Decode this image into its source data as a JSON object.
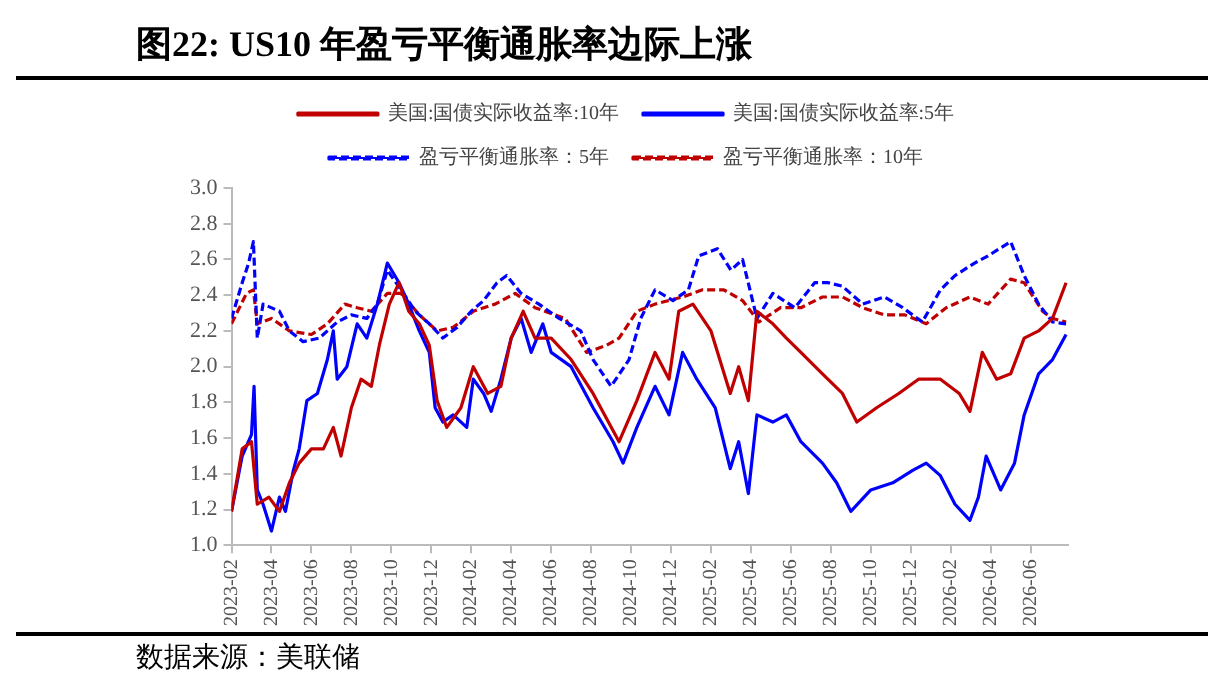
{
  "chart_data": {
    "type": "line",
    "title": "图22:  US10 年盈亏平衡通胀率边际上涨",
    "annotations": [
      "数据来源：美联储"
    ],
    "xlim": [
      "2023-02",
      "2026-07-28"
    ],
    "xticks": [
      "2023-02",
      "2023-04",
      "2023-06",
      "2023-08",
      "2023-10",
      "2023-12",
      "2024-02",
      "2024-04",
      "2024-06",
      "2024-08",
      "2024-10",
      "2024-12",
      "2025-02",
      "2025-04",
      "2025-06",
      "2025-08",
      "2025-10",
      "2025-12",
      "2026-02",
      "2026-04",
      "2026-06"
    ],
    "ylim": [
      1.0,
      3.0
    ],
    "yticks": [
      {
        "value": 1,
        "label": "1.0"
      },
      1.2,
      1.4,
      1.6,
      1.8,
      {
        "value": 2,
        "label": "2.0"
      },
      2.2,
      2.4,
      2.6,
      2.8,
      {
        "value": 3,
        "label": "3.0"
      }
    ],
    "grid": false,
    "legend": "top",
    "marker": "none",
    "series": [
      {
        "name": "美国:国债实际收益率:10年",
        "color": "#c00000",
        "line_style": "solid",
        "x": [
          "2023-02-01",
          "2023-02-16",
          "2023-03-01",
          "2023-03-10",
          "2023-03-28",
          "2023-04-13",
          "2023-04-28",
          "2023-05-13",
          "2023-06-01",
          "2023-06-19",
          "2023-07-04",
          "2023-07-16",
          "2023-08-01",
          "2023-08-16",
          "2023-09-01",
          "2023-09-13",
          "2023-09-28",
          "2023-10-13",
          "2023-10-28",
          "2023-11-13",
          "2023-11-28",
          "2023-12-10",
          "2023-12-25",
          "2024-01-16",
          "2024-02-04",
          "2024-02-25",
          "2024-03-16",
          "2024-04-01",
          "2024-04-19",
          "2024-05-07",
          "2024-06-01",
          "2024-07-01",
          "2024-08-04",
          "2024-09-13",
          "2024-10-10",
          "2024-11-07",
          "2024-11-28",
          "2024-12-13",
          "2025-01-04",
          "2025-02-01",
          "2025-02-28",
          "2025-03-13",
          "2025-03-28",
          "2025-04-10",
          "2025-05-04",
          "2025-05-25",
          "2025-06-16",
          "2025-07-19",
          "2025-08-19",
          "2025-09-10",
          "2025-10-10",
          "2025-11-13",
          "2025-12-13",
          "2026-01-16",
          "2026-02-13",
          "2026-02-28",
          "2026-03-19",
          "2026-04-10",
          "2026-05-01",
          "2026-05-22",
          "2026-06-13",
          "2026-07-04",
          "2026-07-25"
        ],
        "values": [
          1.19,
          1.54,
          1.58,
          1.23,
          1.27,
          1.19,
          1.35,
          1.46,
          1.54,
          1.54,
          1.66,
          1.5,
          1.77,
          1.93,
          1.89,
          2.12,
          2.35,
          2.47,
          2.31,
          2.24,
          2.12,
          1.81,
          1.66,
          1.77,
          2.0,
          1.85,
          1.89,
          2.16,
          2.31,
          2.16,
          2.16,
          2.04,
          1.85,
          1.58,
          1.81,
          2.08,
          1.93,
          2.31,
          2.35,
          2.2,
          1.85,
          2.0,
          1.81,
          2.31,
          2.24,
          2.16,
          2.08,
          1.96,
          1.85,
          1.69,
          1.77,
          1.85,
          1.93,
          1.93,
          1.85,
          1.75,
          2.08,
          1.93,
          1.96,
          2.16,
          2.2,
          2.27,
          2.47
        ]
      },
      {
        "name": "美国:国债实际收益率:5年",
        "color": "#0000ff",
        "line_style": "solid",
        "x": [
          "2023-02-01",
          "2023-02-16",
          "2023-03-01",
          "2023-03-05",
          "2023-03-10",
          "2023-03-19",
          "2023-04-01",
          "2023-04-13",
          "2023-04-22",
          "2023-05-04",
          "2023-05-13",
          "2023-05-25",
          "2023-06-10",
          "2023-06-25",
          "2023-07-04",
          "2023-07-10",
          "2023-07-25",
          "2023-08-10",
          "2023-08-25",
          "2023-09-10",
          "2023-09-25",
          "2023-10-13",
          "2023-10-28",
          "2023-11-13",
          "2023-11-28",
          "2023-12-07",
          "2023-12-19",
          "2024-01-04",
          "2024-01-25",
          "2024-02-04",
          "2024-02-19",
          "2024-03-01",
          "2024-03-16",
          "2024-04-01",
          "2024-04-16",
          "2024-05-01",
          "2024-05-19",
          "2024-06-01",
          "2024-07-01",
          "2024-08-04",
          "2024-09-04",
          "2024-09-19",
          "2024-10-10",
          "2024-11-07",
          "2024-11-28",
          "2024-12-19",
          "2025-01-10",
          "2025-02-07",
          "2025-02-28",
          "2025-03-13",
          "2025-03-28",
          "2025-04-10",
          "2025-05-04",
          "2025-05-25",
          "2025-06-16",
          "2025-07-19",
          "2025-08-10",
          "2025-09-01",
          "2025-10-01",
          "2025-11-04",
          "2025-12-04",
          "2025-12-25",
          "2026-01-16",
          "2026-02-07",
          "2026-02-28",
          "2026-03-13",
          "2026-03-25",
          "2026-04-16",
          "2026-05-07",
          "2026-05-22",
          "2026-06-13",
          "2026-07-04",
          "2026-07-25"
        ],
        "values": [
          1.19,
          1.5,
          1.62,
          1.89,
          1.31,
          1.23,
          1.08,
          1.27,
          1.19,
          1.42,
          1.54,
          1.81,
          1.85,
          2.04,
          2.2,
          1.93,
          2.0,
          2.24,
          2.16,
          2.35,
          2.58,
          2.47,
          2.35,
          2.2,
          2.08,
          1.77,
          1.69,
          1.73,
          1.66,
          1.93,
          1.85,
          1.75,
          1.93,
          2.16,
          2.27,
          2.08,
          2.24,
          2.08,
          2.0,
          1.77,
          1.58,
          1.46,
          1.66,
          1.89,
          1.73,
          2.08,
          1.93,
          1.77,
          1.43,
          1.58,
          1.29,
          1.73,
          1.69,
          1.73,
          1.58,
          1.46,
          1.35,
          1.19,
          1.31,
          1.35,
          1.42,
          1.46,
          1.39,
          1.23,
          1.14,
          1.27,
          1.5,
          1.31,
          1.46,
          1.73,
          1.96,
          2.04,
          2.18
        ]
      },
      {
        "name": "盈亏平衡通胀率：5年",
        "color": "#0000ff",
        "line_style": "dashed",
        "x": [
          "2023-02-01",
          "2023-02-16",
          "2023-02-25",
          "2023-03-04",
          "2023-03-10",
          "2023-03-19",
          "2023-04-13",
          "2023-04-28",
          "2023-05-19",
          "2023-06-13",
          "2023-07-10",
          "2023-08-01",
          "2023-08-25",
          "2023-09-10",
          "2023-09-25",
          "2023-10-16",
          "2023-11-07",
          "2023-11-28",
          "2023-12-19",
          "2024-01-10",
          "2024-02-01",
          "2024-02-19",
          "2024-03-10",
          "2024-03-25",
          "2024-04-16",
          "2024-05-13",
          "2024-06-13",
          "2024-07-16",
          "2024-08-04",
          "2024-09-01",
          "2024-09-28",
          "2024-10-16",
          "2024-11-07",
          "2024-12-04",
          "2024-12-28",
          "2025-01-13",
          "2025-02-10",
          "2025-03-01",
          "2025-03-19",
          "2025-04-10",
          "2025-05-04",
          "2025-06-07",
          "2025-07-07",
          "2025-07-28",
          "2025-08-19",
          "2025-09-19",
          "2025-10-22",
          "2025-11-19",
          "2025-12-19",
          "2026-01-16",
          "2026-02-07",
          "2026-03-07",
          "2026-03-28",
          "2026-05-01",
          "2026-05-22",
          "2026-06-13",
          "2026-07-04",
          "2026-07-25"
        ],
        "values": [
          2.27,
          2.47,
          2.58,
          2.7,
          2.16,
          2.35,
          2.31,
          2.2,
          2.14,
          2.16,
          2.25,
          2.29,
          2.27,
          2.35,
          2.54,
          2.43,
          2.31,
          2.24,
          2.16,
          2.22,
          2.31,
          2.37,
          2.47,
          2.51,
          2.41,
          2.35,
          2.27,
          2.2,
          2.04,
          1.89,
          2.04,
          2.27,
          2.43,
          2.37,
          2.43,
          2.62,
          2.66,
          2.54,
          2.6,
          2.27,
          2.41,
          2.33,
          2.47,
          2.47,
          2.45,
          2.35,
          2.39,
          2.33,
          2.25,
          2.43,
          2.51,
          2.58,
          2.62,
          2.7,
          2.51,
          2.35,
          2.25,
          2.24
        ]
      },
      {
        "name": "盈亏平衡通胀率：10年",
        "color": "#c00000",
        "line_style": "dashed",
        "x": [
          "2023-02-01",
          "2023-02-22",
          "2023-03-04",
          "2023-03-10",
          "2023-04-01",
          "2023-04-28",
          "2023-06-01",
          "2023-06-25",
          "2023-07-22",
          "2023-08-10",
          "2023-09-01",
          "2023-09-25",
          "2023-10-16",
          "2023-11-13",
          "2023-12-10",
          "2024-01-04",
          "2024-02-04",
          "2024-03-07",
          "2024-04-07",
          "2024-05-07",
          "2024-06-22",
          "2024-07-25",
          "2024-08-25",
          "2024-09-13",
          "2024-10-10",
          "2024-11-07",
          "2024-12-19",
          "2025-01-19",
          "2025-02-19",
          "2025-03-19",
          "2025-04-13",
          "2025-05-16",
          "2025-06-16",
          "2025-07-19",
          "2025-08-19",
          "2025-09-19",
          "2025-10-22",
          "2025-11-22",
          "2025-12-25",
          "2026-01-25",
          "2026-02-28",
          "2026-03-28",
          "2026-05-01",
          "2026-05-22",
          "2026-06-19",
          "2026-07-04",
          "2026-07-25"
        ],
        "values": [
          2.24,
          2.41,
          2.43,
          2.24,
          2.27,
          2.2,
          2.18,
          2.24,
          2.35,
          2.33,
          2.31,
          2.41,
          2.41,
          2.29,
          2.2,
          2.22,
          2.31,
          2.35,
          2.41,
          2.33,
          2.27,
          2.08,
          2.12,
          2.16,
          2.31,
          2.35,
          2.39,
          2.43,
          2.43,
          2.37,
          2.25,
          2.33,
          2.33,
          2.39,
          2.39,
          2.33,
          2.29,
          2.29,
          2.24,
          2.33,
          2.39,
          2.35,
          2.49,
          2.47,
          2.31,
          2.27,
          2.25
        ]
      }
    ]
  }
}
